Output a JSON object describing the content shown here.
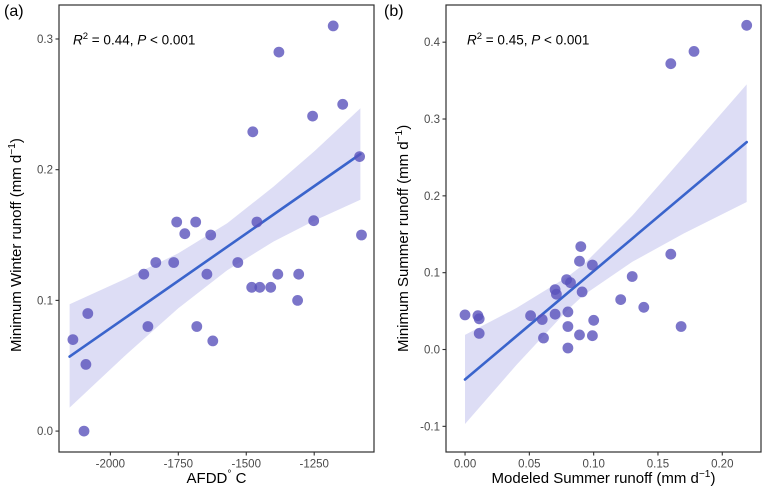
{
  "figure": {
    "background": "#ffffff",
    "border_color": "#303030",
    "tick_label_color": "#4a4a4a"
  },
  "chart_data": [
    {
      "type": "scatter",
      "panel_tag": "(a)",
      "annotation": {
        "stat_italic": "R",
        "stat_sup": "2",
        "stat_mid": " = 0.44, ",
        "p_italic": "P",
        "p_rest": " < 0.001"
      },
      "xlabel_parts": {
        "pre": "AFDD",
        "sup": "°",
        "post": " C"
      },
      "ylabel_parts": {
        "pre": "Minimum Winter runoff (mm d",
        "sup": "−1",
        "post": ")"
      },
      "xlim": [
        -2189,
        -1030
      ],
      "ylim": [
        -0.016,
        0.326
      ],
      "x_ticks": {
        "values": [
          -2000,
          -1750,
          -1500,
          -1250
        ],
        "labels": [
          "-2000",
          "-1750",
          "-1500",
          "-1250"
        ]
      },
      "y_ticks": {
        "values": [
          0.0,
          0.1,
          0.2,
          0.3
        ],
        "labels": [
          "0.0",
          "0.1",
          "0.2",
          "0.3"
        ]
      },
      "points": [
        [
          -2138,
          0.07
        ],
        [
          -2097,
          0.0
        ],
        [
          -2090,
          0.051
        ],
        [
          -2083,
          0.09
        ],
        [
          -1877,
          0.12
        ],
        [
          -1862,
          0.08
        ],
        [
          -1833,
          0.129
        ],
        [
          -1767,
          0.129
        ],
        [
          -1756,
          0.16
        ],
        [
          -1726,
          0.151
        ],
        [
          -1686,
          0.16
        ],
        [
          -1682,
          0.08
        ],
        [
          -1645,
          0.12
        ],
        [
          -1631,
          0.15
        ],
        [
          -1623,
          0.069
        ],
        [
          -1531,
          0.129
        ],
        [
          -1480,
          0.11
        ],
        [
          -1476,
          0.229
        ],
        [
          -1461,
          0.16
        ],
        [
          -1450,
          0.11
        ],
        [
          -1410,
          0.11
        ],
        [
          -1384,
          0.12
        ],
        [
          -1380,
          0.29
        ],
        [
          -1311,
          0.1
        ],
        [
          -1307,
          0.12
        ],
        [
          -1256,
          0.241
        ],
        [
          -1252,
          0.161
        ],
        [
          -1180,
          0.31
        ],
        [
          -1145,
          0.25
        ],
        [
          -1083,
          0.21
        ],
        [
          -1076,
          0.15
        ]
      ],
      "regression_line": {
        "x": [
          -2150,
          -1080
        ],
        "y": [
          0.057,
          0.212
        ]
      },
      "confidence_band": {
        "x": [
          -2150,
          -1950,
          -1750,
          -1570,
          -1400,
          -1250,
          -1080
        ],
        "upper": [
          0.097,
          0.116,
          0.136,
          0.159,
          0.187,
          0.214,
          0.247
        ],
        "lower": [
          0.018,
          0.057,
          0.094,
          0.123,
          0.145,
          0.161,
          0.177
        ]
      },
      "colors": {
        "point": "rgba(90,82,188,0.8)",
        "line": "#3A64CC",
        "band": "rgba(150,150,225,0.32)"
      }
    },
    {
      "type": "scatter",
      "panel_tag": "(b)",
      "annotation": {
        "stat_italic": "R",
        "stat_sup": "2",
        "stat_mid": " = 0.45, ",
        "p_italic": "P",
        "p_rest": " < 0.001"
      },
      "xlabel_parts": {
        "pre": "Modeled Summer runoff (mm d",
        "sup": "−1",
        "post": ")"
      },
      "ylabel_parts": {
        "pre": "Minimum Summer runoff (mm d",
        "sup": "−1",
        "post": ")"
      },
      "xlim": [
        -0.0148,
        0.2301
      ],
      "ylim": [
        -0.1334,
        0.4484
      ],
      "x_ticks": {
        "values": [
          0.0,
          0.05,
          0.1,
          0.15,
          0.2
        ],
        "labels": [
          "0.00",
          "0.05",
          "0.10",
          "0.15",
          "0.20"
        ]
      },
      "y_ticks": {
        "values": [
          -0.1,
          0.0,
          0.1,
          0.2,
          0.3,
          0.4
        ],
        "labels": [
          "-0.1",
          "0.0",
          "0.1",
          "0.2",
          "0.3",
          "0.4"
        ]
      },
      "points": [
        [
          0.0,
          0.045
        ],
        [
          0.01,
          0.044
        ],
        [
          0.011,
          0.04
        ],
        [
          0.011,
          0.021
        ],
        [
          0.051,
          0.044
        ],
        [
          0.06,
          0.039
        ],
        [
          0.061,
          0.015
        ],
        [
          0.07,
          0.046
        ],
        [
          0.07,
          0.078
        ],
        [
          0.071,
          0.072
        ],
        [
          0.079,
          0.091
        ],
        [
          0.082,
          0.087
        ],
        [
          0.08,
          0.049
        ],
        [
          0.08,
          0.03
        ],
        [
          0.08,
          0.002
        ],
        [
          0.09,
          0.134
        ],
        [
          0.089,
          0.115
        ],
        [
          0.091,
          0.075
        ],
        [
          0.089,
          0.019
        ],
        [
          0.099,
          0.11
        ],
        [
          0.1,
          0.038
        ],
        [
          0.099,
          0.018
        ],
        [
          0.121,
          0.065
        ],
        [
          0.13,
          0.095
        ],
        [
          0.139,
          0.055
        ],
        [
          0.16,
          0.124
        ],
        [
          0.16,
          0.372
        ],
        [
          0.178,
          0.388
        ],
        [
          0.219,
          0.422
        ],
        [
          0.168,
          0.03
        ]
      ],
      "regression_line": {
        "x": [
          0.0,
          0.219
        ],
        "y": [
          -0.039,
          0.27
        ]
      },
      "confidence_band": {
        "x": [
          0.0,
          0.04,
          0.08,
          0.0923,
          0.13,
          0.17,
          0.219
        ],
        "upper": [
          0.019,
          0.054,
          0.095,
          0.111,
          0.174,
          0.251,
          0.345
        ],
        "lower": [
          -0.097,
          -0.02,
          0.052,
          0.071,
          0.114,
          0.151,
          0.192
        ]
      },
      "colors": {
        "point": "rgba(90,82,188,0.8)",
        "line": "#3A64CC",
        "band": "rgba(150,150,225,0.32)"
      }
    }
  ]
}
